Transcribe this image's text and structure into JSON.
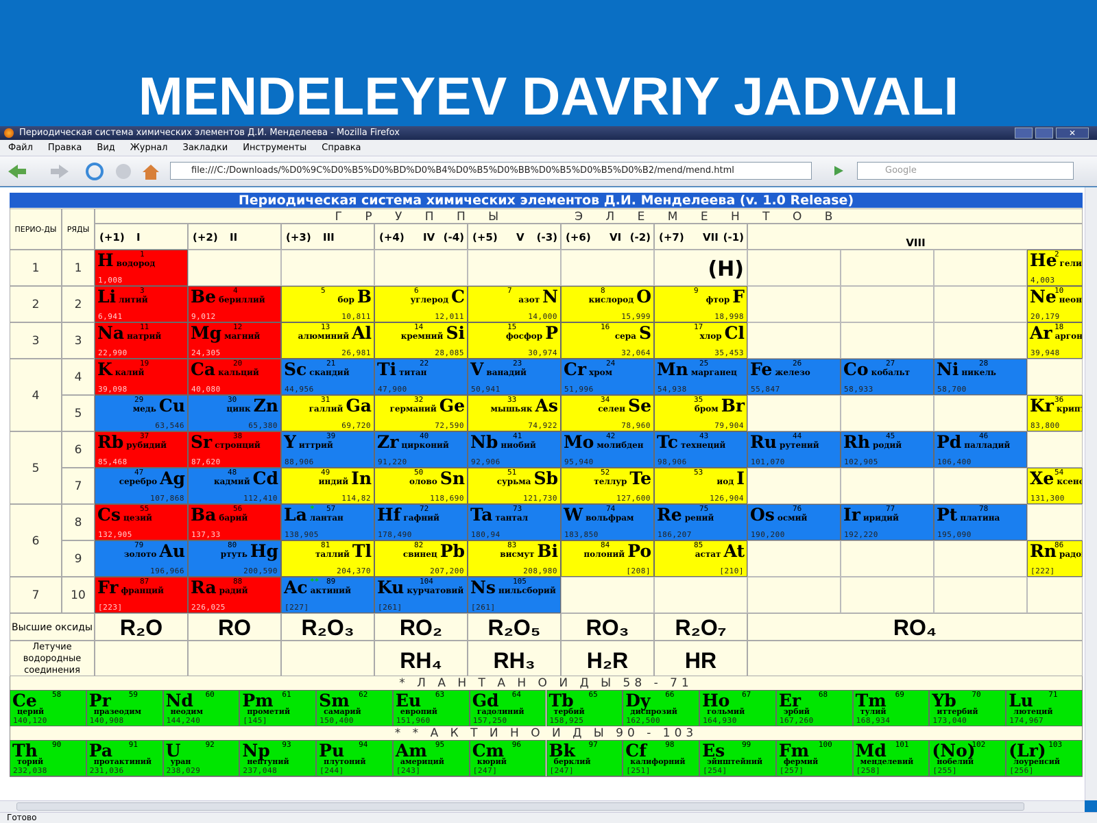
{
  "slide_title": "MENDELEYEV DAVRIY JADVALI",
  "browser": {
    "window_title": "Периодическая система химических элементов Д.И. Менделеева - Mozilla Firefox",
    "menu": [
      "Файл",
      "Правка",
      "Вид",
      "Журнал",
      "Закладки",
      "Инструменты",
      "Справка"
    ],
    "url": "file:///C:/Downloads/%D0%9C%D0%B5%D0%BD%D0%B4%D0%B5%D0%BB%D0%B5%D0%B5%D0%B2/mend/mend.html",
    "search": "Google",
    "status": "Готово"
  },
  "table": {
    "title": "Периодическая система химических элементов Д.И. Менделеева (v. 1.0 Release)",
    "groups_caption": "Г Р У П П Ы     Э Л Е М Е Н Т О В",
    "period_header": "ПЕРИО-ДЫ",
    "row_header": "РЯДЫ",
    "groups": [
      {
        "ox": "(+1)",
        "roman": "I"
      },
      {
        "ox": "(+2)",
        "roman": "II"
      },
      {
        "ox": "(+3)",
        "roman": "III"
      },
      {
        "ox": "(+4)",
        "roman": "IV",
        "neg": "(-4)"
      },
      {
        "ox": "(+5)",
        "roman": "V",
        "neg": "(-3)"
      },
      {
        "ox": "(+6)",
        "roman": "VI",
        "neg": "(-2)"
      },
      {
        "ox": "(+7)",
        "roman": "VII",
        "neg": "(-1)"
      },
      {
        "roman": "VIII"
      }
    ],
    "palette": {
      "red": "#ff0000",
      "yellow": "#ffff00",
      "blue": "#1a7ff0",
      "green": "#00e600"
    },
    "rows": [
      {
        "period": 1,
        "row": 1,
        "cells": [
          {
            "symbol": "H",
            "number": 1,
            "name": "водород",
            "mass": "1,008",
            "color": "red"
          },
          null,
          null,
          null,
          null,
          null,
          {
            "symbol": "(H)"
          },
          null,
          null,
          null,
          {
            "symbol": "He",
            "number": 2,
            "name": "гелий",
            "mass": "4,003",
            "color": "yellow"
          }
        ]
      },
      {
        "period": 2,
        "row": 2,
        "cells": [
          {
            "symbol": "Li",
            "number": 3,
            "name": "литий",
            "mass": "6,941",
            "color": "red"
          },
          {
            "symbol": "Be",
            "number": 4,
            "name": "бериллий",
            "mass": "9,012",
            "color": "red"
          },
          {
            "symbol": "B",
            "number": 5,
            "name": "бор",
            "mass": "10,811",
            "color": "yellow"
          },
          {
            "symbol": "C",
            "number": 6,
            "name": "углерод",
            "mass": "12,011",
            "color": "yellow"
          },
          {
            "symbol": "N",
            "number": 7,
            "name": "азот",
            "mass": "14,000",
            "color": "yellow"
          },
          {
            "symbol": "O",
            "number": 8,
            "name": "кислород",
            "mass": "15,999",
            "color": "yellow"
          },
          {
            "symbol": "F",
            "number": 9,
            "name": "фтор",
            "mass": "18,998",
            "color": "yellow"
          },
          null,
          null,
          null,
          {
            "symbol": "Ne",
            "number": 10,
            "name": "неон",
            "mass": "20,179",
            "color": "yellow"
          }
        ]
      },
      {
        "period": 3,
        "row": 3,
        "cells": [
          {
            "symbol": "Na",
            "number": 11,
            "name": "натрий",
            "mass": "22,990",
            "color": "red"
          },
          {
            "symbol": "Mg",
            "number": 12,
            "name": "магний",
            "mass": "24,305",
            "color": "red"
          },
          {
            "symbol": "Al",
            "number": 13,
            "name": "алюминий",
            "mass": "26,981",
            "color": "yellow"
          },
          {
            "symbol": "Si",
            "number": 14,
            "name": "кремний",
            "mass": "28,085",
            "color": "yellow"
          },
          {
            "symbol": "P",
            "number": 15,
            "name": "фосфор",
            "mass": "30,974",
            "color": "yellow"
          },
          {
            "symbol": "S",
            "number": 16,
            "name": "сера",
            "mass": "32,064",
            "color": "yellow"
          },
          {
            "symbol": "Cl",
            "number": 17,
            "name": "хлор",
            "mass": "35,453",
            "color": "yellow"
          },
          null,
          null,
          null,
          {
            "symbol": "Ar",
            "number": 18,
            "name": "аргон",
            "mass": "39,948",
            "color": "yellow"
          }
        ]
      },
      {
        "period": 4,
        "row": 4,
        "cells": [
          {
            "symbol": "K",
            "number": 19,
            "name": "калий",
            "mass": "39,098",
            "color": "red"
          },
          {
            "symbol": "Ca",
            "number": 20,
            "name": "кальций",
            "mass": "40,080",
            "color": "red"
          },
          {
            "symbol": "Sc",
            "number": 21,
            "name": "скандий",
            "mass": "44,956",
            "color": "blue"
          },
          {
            "symbol": "Ti",
            "number": 22,
            "name": "титан",
            "mass": "47,900",
            "color": "blue"
          },
          {
            "symbol": "V",
            "number": 23,
            "name": "ванадий",
            "mass": "50,941",
            "color": "blue"
          },
          {
            "symbol": "Cr",
            "number": 24,
            "name": "хром",
            "mass": "51,996",
            "color": "blue"
          },
          {
            "symbol": "Mn",
            "number": 25,
            "name": "марганец",
            "mass": "54,938",
            "color": "blue"
          },
          {
            "symbol": "Fe",
            "number": 26,
            "name": "железо",
            "mass": "55,847",
            "color": "blue"
          },
          {
            "symbol": "Co",
            "number": 27,
            "name": "кобальт",
            "mass": "58,933",
            "color": "blue"
          },
          {
            "symbol": "Ni",
            "number": 28,
            "name": "никель",
            "mass": "58,700",
            "color": "blue"
          },
          null
        ]
      },
      {
        "period": 4,
        "row": 5,
        "cells": [
          {
            "symbol": "Cu",
            "number": 29,
            "name": "медь",
            "mass": "63,546",
            "color": "blue"
          },
          {
            "symbol": "Zn",
            "number": 30,
            "name": "цинк",
            "mass": "65,380",
            "color": "blue"
          },
          {
            "symbol": "Ga",
            "number": 31,
            "name": "галлий",
            "mass": "69,720",
            "color": "yellow"
          },
          {
            "symbol": "Ge",
            "number": 32,
            "name": "германий",
            "mass": "72,590",
            "color": "yellow"
          },
          {
            "symbol": "As",
            "number": 33,
            "name": "мышьяк",
            "mass": "74,922",
            "color": "yellow"
          },
          {
            "symbol": "Se",
            "number": 34,
            "name": "селен",
            "mass": "78,960",
            "color": "yellow"
          },
          {
            "symbol": "Br",
            "number": 35,
            "name": "бром",
            "mass": "79,904",
            "color": "yellow"
          },
          null,
          null,
          null,
          {
            "symbol": "Kr",
            "number": 36,
            "name": "криптон",
            "mass": "83,800",
            "color": "yellow"
          }
        ]
      },
      {
        "period": 5,
        "row": 6,
        "cells": [
          {
            "symbol": "Rb",
            "number": 37,
            "name": "рубидий",
            "mass": "85,468",
            "color": "red"
          },
          {
            "symbol": "Sr",
            "number": 38,
            "name": "стронций",
            "mass": "87,620",
            "color": "red"
          },
          {
            "symbol": "Y",
            "number": 39,
            "name": "иттрий",
            "mass": "88,906",
            "color": "blue"
          },
          {
            "symbol": "Zr",
            "number": 40,
            "name": "цирконий",
            "mass": "91,220",
            "color": "blue"
          },
          {
            "symbol": "Nb",
            "number": 41,
            "name": "ниобий",
            "mass": "92,906",
            "color": "blue"
          },
          {
            "symbol": "Mo",
            "number": 42,
            "name": "молибден",
            "mass": "95,940",
            "color": "blue"
          },
          {
            "symbol": "Tc",
            "number": 43,
            "name": "технеций",
            "mass": "98,906",
            "color": "blue"
          },
          {
            "symbol": "Ru",
            "number": 44,
            "name": "рутений",
            "mass": "101,070",
            "color": "blue"
          },
          {
            "symbol": "Rh",
            "number": 45,
            "name": "родий",
            "mass": "102,905",
            "color": "blue"
          },
          {
            "symbol": "Pd",
            "number": 46,
            "name": "палладий",
            "mass": "106,400",
            "color": "blue"
          },
          null
        ]
      },
      {
        "period": 5,
        "row": 7,
        "cells": [
          {
            "symbol": "Ag",
            "number": 47,
            "name": "серебро",
            "mass": "107,868",
            "color": "blue"
          },
          {
            "symbol": "Cd",
            "number": 48,
            "name": "кадмий",
            "mass": "112,410",
            "color": "blue"
          },
          {
            "symbol": "In",
            "number": 49,
            "name": "индий",
            "mass": "114,82",
            "color": "yellow"
          },
          {
            "symbol": "Sn",
            "number": 50,
            "name": "олово",
            "mass": "118,690",
            "color": "yellow"
          },
          {
            "symbol": "Sb",
            "number": 51,
            "name": "сурьма",
            "mass": "121,730",
            "color": "yellow"
          },
          {
            "symbol": "Te",
            "number": 52,
            "name": "теллур",
            "mass": "127,600",
            "color": "yellow"
          },
          {
            "symbol": "I",
            "number": 53,
            "name": "иод",
            "mass": "126,904",
            "color": "yellow"
          },
          null,
          null,
          null,
          {
            "symbol": "Xe",
            "number": 54,
            "name": "ксенон",
            "mass": "131,300",
            "color": "yellow"
          }
        ]
      },
      {
        "period": 6,
        "row": 8,
        "cells": [
          {
            "symbol": "Cs",
            "number": 55,
            "name": "цезий",
            "mass": "132,905",
            "color": "red"
          },
          {
            "symbol": "Ba",
            "number": 56,
            "name": "барий",
            "mass": "137,33",
            "color": "red"
          },
          {
            "symbol": "La",
            "number": 57,
            "name": "лантан",
            "mass": "138,905",
            "color": "blue",
            "mark": "*"
          },
          {
            "symbol": "Hf",
            "number": 72,
            "name": "гафний",
            "mass": "178,490",
            "color": "blue"
          },
          {
            "symbol": "Ta",
            "number": 73,
            "name": "тантал",
            "mass": "180,94",
            "color": "blue"
          },
          {
            "symbol": "W",
            "number": 74,
            "name": "вольфрам",
            "mass": "183,850",
            "color": "blue"
          },
          {
            "symbol": "Re",
            "number": 75,
            "name": "рений",
            "mass": "186,207",
            "color": "blue"
          },
          {
            "symbol": "Os",
            "number": 76,
            "name": "осмий",
            "mass": "190,200",
            "color": "blue"
          },
          {
            "symbol": "Ir",
            "number": 77,
            "name": "иридий",
            "mass": "192,220",
            "color": "blue"
          },
          {
            "symbol": "Pt",
            "number": 78,
            "name": "платина",
            "mass": "195,090",
            "color": "blue"
          },
          null
        ]
      },
      {
        "period": 6,
        "row": 9,
        "cells": [
          {
            "symbol": "Au",
            "number": 79,
            "name": "золото",
            "mass": "196,966",
            "color": "blue"
          },
          {
            "symbol": "Hg",
            "number": 80,
            "name": "ртуть",
            "mass": "200,590",
            "color": "blue"
          },
          {
            "symbol": "Tl",
            "number": 81,
            "name": "таллий",
            "mass": "204,370",
            "color": "yellow"
          },
          {
            "symbol": "Pb",
            "number": 82,
            "name": "свинец",
            "mass": "207,200",
            "color": "yellow"
          },
          {
            "symbol": "Bi",
            "number": 83,
            "name": "висмут",
            "mass": "208,980",
            "color": "yellow"
          },
          {
            "symbol": "Po",
            "number": 84,
            "name": "полоний",
            "mass": "[208]",
            "color": "yellow"
          },
          {
            "symbol": "At",
            "number": 85,
            "name": "астат",
            "mass": "[210]",
            "color": "yellow"
          },
          null,
          null,
          null,
          {
            "symbol": "Rn",
            "number": 86,
            "name": "радон",
            "mass": "[222]",
            "color": "yellow"
          }
        ]
      },
      {
        "period": 7,
        "row": 10,
        "cells": [
          {
            "symbol": "Fr",
            "number": 87,
            "name": "франций",
            "mass": "[223]",
            "color": "red"
          },
          {
            "symbol": "Ra",
            "number": 88,
            "name": "радий",
            "mass": "226,025",
            "color": "red"
          },
          {
            "symbol": "Ac",
            "number": 89,
            "name": "актиний",
            "mass": "[227]",
            "color": "blue",
            "mark": "**"
          },
          {
            "symbol": "Ku",
            "number": 104,
            "name": "курчатовий",
            "mass": "[261]",
            "color": "blue"
          },
          {
            "symbol": "Ns",
            "number": 105,
            "name": "нильсборий",
            "mass": "[261]",
            "color": "blue"
          },
          null,
          null,
          null,
          null,
          null,
          null
        ]
      }
    ],
    "oxides_label": "Высшие оксиды",
    "oxides": [
      "R₂O",
      "RO",
      "R₂O₃",
      "RO₂",
      "R₂O₅",
      "RO₃",
      "R₂O₇",
      "RO₄"
    ],
    "hydrides_label": "Летучие водородные соединения",
    "hydrides": [
      null,
      null,
      null,
      "RH₄",
      "RH₃",
      "H₂R",
      "HR",
      null
    ],
    "lanthanides": {
      "label": "* Л А Н Т А Н О И Д Ы 58 - 71",
      "color": "green",
      "elements": [
        {
          "symbol": "Ce",
          "number": 58,
          "name": "церий",
          "mass": "140,120"
        },
        {
          "symbol": "Pr",
          "number": 59,
          "name": "празеодим",
          "mass": "140,908"
        },
        {
          "symbol": "Nd",
          "number": 60,
          "name": "неодим",
          "mass": "144,240"
        },
        {
          "symbol": "Pm",
          "number": 61,
          "name": "прометий",
          "mass": "[145]"
        },
        {
          "symbol": "Sm",
          "number": 62,
          "name": "самарий",
          "mass": "150,400"
        },
        {
          "symbol": "Eu",
          "number": 63,
          "name": "европий",
          "mass": "151,960"
        },
        {
          "symbol": "Gd",
          "number": 64,
          "name": "гадолиний",
          "mass": "157,250"
        },
        {
          "symbol": "Tb",
          "number": 65,
          "name": "тербий",
          "mass": "158,925"
        },
        {
          "symbol": "Dy",
          "number": 66,
          "name": "диспрозий",
          "mass": "162,500"
        },
        {
          "symbol": "Ho",
          "number": 67,
          "name": "гольмий",
          "mass": "164,930"
        },
        {
          "symbol": "Er",
          "number": 68,
          "name": "эрбий",
          "mass": "167,260"
        },
        {
          "symbol": "Tm",
          "number": 69,
          "name": "тулий",
          "mass": "168,934"
        },
        {
          "symbol": "Yb",
          "number": 70,
          "name": "иттербий",
          "mass": "173,040"
        },
        {
          "symbol": "Lu",
          "number": 71,
          "name": "лютеций",
          "mass": "174,967"
        }
      ]
    },
    "actinides": {
      "label": "* * А К Т И Н О И Д Ы 90 - 103",
      "color": "green",
      "elements": [
        {
          "symbol": "Th",
          "number": 90,
          "name": "торий",
          "mass": "232,038"
        },
        {
          "symbol": "Pa",
          "number": 91,
          "name": "протактиний",
          "mass": "231,036"
        },
        {
          "symbol": "U",
          "number": 92,
          "name": "уран",
          "mass": "238,029"
        },
        {
          "symbol": "Np",
          "number": 93,
          "name": "нептуний",
          "mass": "237,048"
        },
        {
          "symbol": "Pu",
          "number": 94,
          "name": "плутоний",
          "mass": "[244]"
        },
        {
          "symbol": "Am",
          "number": 95,
          "name": "америций",
          "mass": "[243]"
        },
        {
          "symbol": "Cm",
          "number": 96,
          "name": "кюрий",
          "mass": "[247]"
        },
        {
          "symbol": "Bk",
          "number": 97,
          "name": "берклий",
          "mass": "[247]"
        },
        {
          "symbol": "Cf",
          "number": 98,
          "name": "калифорний",
          "mass": "[251]"
        },
        {
          "symbol": "Es",
          "number": 99,
          "name": "эйнштейний",
          "mass": "[254]"
        },
        {
          "symbol": "Fm",
          "number": 100,
          "name": "фермий",
          "mass": "[257]"
        },
        {
          "symbol": "Md",
          "number": 101,
          "name": "менделевий",
          "mass": "[258]"
        },
        {
          "symbol": "(No)",
          "number": 102,
          "name": "нобелий",
          "mass": "[255]"
        },
        {
          "symbol": "(Lr)",
          "number": 103,
          "name": "лоуренсий",
          "mass": "[256]"
        }
      ]
    }
  }
}
